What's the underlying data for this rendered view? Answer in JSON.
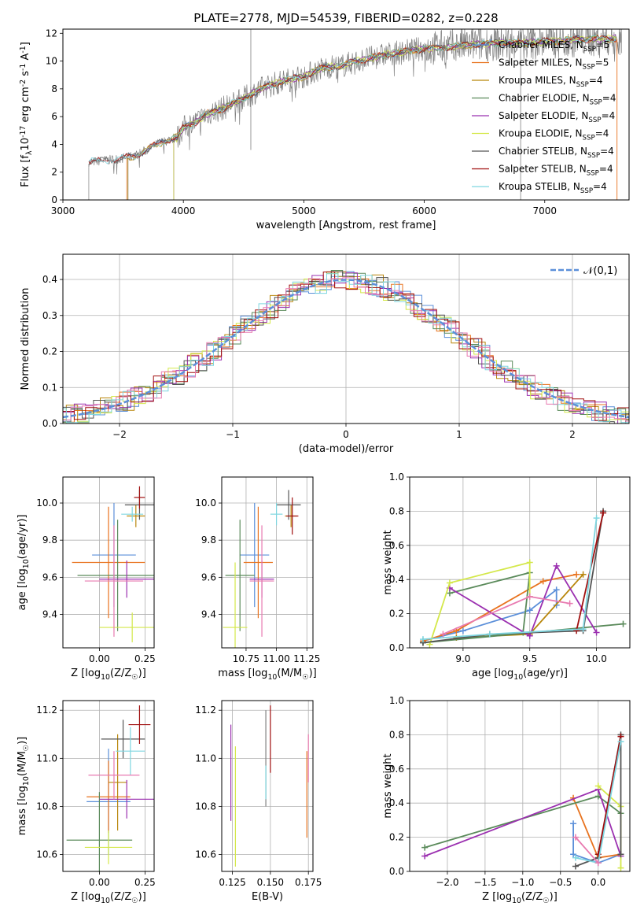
{
  "title": "PLATE=2778, MJD=54539, FIBERID=0282, z=0.228",
  "colors": {
    "chabrier_miles": "#5b8fd9",
    "salpeter_miles": "#e8731f",
    "kroupa_miles": "#b8860b",
    "chabrier_elodie": "#5a8a5a",
    "salpeter_elodie": "#9b30b0",
    "kroupa_elodie": "#d4e84a",
    "chabrier_stelib": "#555555",
    "salpeter_stelib": "#a00f0f",
    "kroupa_stelib": "#7fd6e0",
    "pink": "#e87ab0",
    "grey": "#808080",
    "gauss": "#5b8fd9"
  },
  "chart_data": [
    {
      "id": "spectrum",
      "type": "line",
      "xlabel": "wavelength [Angstrom, rest frame]",
      "ylabel": "Flux [f$_\\lambda$10$^{-17}$ erg cm$^{-2}$ s$^{-1}$ A$^{-1}$]",
      "xlim": [
        3000,
        7700
      ],
      "ylim": [
        0,
        12.3
      ],
      "xticks": [
        "3000",
        "4000",
        "5000",
        "6000",
        "7000"
      ],
      "yticks": [
        "0",
        "2",
        "4",
        "6",
        "8",
        "10",
        "12"
      ],
      "legend": [
        "Chabrier MILES, N$_{SSP}$=5",
        "Salpeter MILES, N$_{SSP}$=5",
        "Kroupa MILES, N$_{SSP}$=4",
        "Chabrier ELODIE, N$_{SSP}$=4",
        "Salpeter ELODIE, N$_{SSP}$=4",
        "Kroupa ELODIE, N$_{SSP}$=4",
        "Chabrier STELIB, N$_{SSP}$=4",
        "Salpeter STELIB, N$_{SSP}$=4",
        "Kroupa STELIB, N$_{SSP}$=4"
      ],
      "legend_placement": "top-right",
      "model_x": [
        3200,
        3300,
        3400,
        3500,
        3600,
        3700,
        3800,
        3900,
        3950,
        4000,
        4100,
        4200,
        4300,
        4400,
        4500,
        4600,
        4700,
        4800,
        4900,
        5000,
        5100,
        5200,
        5300,
        5400,
        5500,
        5600,
        5700,
        5800,
        5900,
        6000,
        6200,
        6400,
        6600,
        6800,
        7000,
        7200,
        7400,
        7600
      ],
      "model_y": [
        2.7,
        2.8,
        2.9,
        3.0,
        3.2,
        3.6,
        4.1,
        4.4,
        4.5,
        5.2,
        5.6,
        6.2,
        6.5,
        6.9,
        7.3,
        7.8,
        8.2,
        8.5,
        8.7,
        8.9,
        9.3,
        9.6,
        9.6,
        9.9,
        10.1,
        10.3,
        10.5,
        10.6,
        10.8,
        10.9,
        11.0,
        11.2,
        11.3,
        11.3,
        11.4,
        11.5,
        11.6,
        11.6
      ]
    },
    {
      "id": "residuals",
      "type": "histogram",
      "xlabel": "(data-model)/error",
      "ylabel": "Normed distribution",
      "xlim": [
        -2.5,
        2.5
      ],
      "ylim": [
        0,
        0.47
      ],
      "xticks": [
        "−2",
        "−1",
        "0",
        "1",
        "2"
      ],
      "yticks": [
        "0.0",
        "0.1",
        "0.2",
        "0.3",
        "0.4"
      ],
      "legend": [
        "$\\mathcal{N}(0,1)$"
      ],
      "legend_placement": "top-right",
      "grid": true
    },
    {
      "id": "age_vs_Z",
      "type": "errorbar",
      "xlabel": "Z [log$_{10}$(Z/Z$_\\odot$)]",
      "ylabel": "age  [log$_{10}$(age/yr)]",
      "xlim": [
        -0.2,
        0.3
      ],
      "ylim": [
        9.22,
        10.14
      ],
      "xticks": [
        "0.00",
        "0.25"
      ],
      "yticks": [
        "9.4",
        "9.6",
        "9.8",
        "10.0"
      ],
      "grid": true,
      "points": [
        {
          "c": "chabrier_miles",
          "x": 0.08,
          "y": 9.72,
          "xerr": 0.12,
          "yerr": 0.28
        },
        {
          "c": "salpeter_miles",
          "x": 0.05,
          "y": 9.68,
          "xerr": 0.2,
          "yerr": 0.3
        },
        {
          "c": "kroupa_miles",
          "x": 0.2,
          "y": 9.93,
          "xerr": 0.05,
          "yerr": 0.06
        },
        {
          "c": "chabrier_elodie",
          "x": 0.1,
          "y": 9.61,
          "xerr": 0.22,
          "yerr": 0.3
        },
        {
          "c": "salpeter_elodie",
          "x": 0.15,
          "y": 9.59,
          "xerr": 0.15,
          "yerr": 0.1
        },
        {
          "c": "kroupa_elodie",
          "x": 0.18,
          "y": 9.33,
          "xerr": 0.18,
          "yerr": 0.08
        },
        {
          "c": "chabrier_stelib",
          "x": 0.22,
          "y": 9.99,
          "xerr": 0.08,
          "yerr": 0.08
        },
        {
          "c": "salpeter_stelib",
          "x": 0.22,
          "y": 10.03,
          "xerr": 0.03,
          "yerr": 0.06
        },
        {
          "c": "kroupa_stelib",
          "x": 0.18,
          "y": 9.94,
          "xerr": 0.06,
          "yerr": 0.04
        },
        {
          "c": "pink",
          "x": 0.08,
          "y": 9.58,
          "xerr": 0.16,
          "yerr": 0.3
        }
      ]
    },
    {
      "id": "age_vs_mass",
      "type": "errorbar",
      "xlabel": "mass [log$_{10}$(M/M$_\\odot$)]",
      "ylabel": "",
      "xlim": [
        10.55,
        11.3
      ],
      "ylim": [
        9.22,
        10.14
      ],
      "xticks": [
        "10.75",
        "11.00",
        "11.25"
      ],
      "yticks": [
        "9.4",
        "9.6",
        "9.8",
        "10.0"
      ],
      "grid": true,
      "points": [
        {
          "c": "chabrier_miles",
          "x": 10.82,
          "y": 9.72,
          "xerr": 0.12,
          "yerr": 0.28
        },
        {
          "c": "salpeter_miles",
          "x": 10.85,
          "y": 9.68,
          "xerr": 0.12,
          "yerr": 0.3
        },
        {
          "c": "kroupa_miles",
          "x": 11.12,
          "y": 9.93,
          "xerr": 0.05,
          "yerr": 0.06
        },
        {
          "c": "chabrier_elodie",
          "x": 10.7,
          "y": 9.61,
          "xerr": 0.12,
          "yerr": 0.3
        },
        {
          "c": "salpeter_elodie",
          "x": 10.88,
          "y": 9.59,
          "xerr": 0.1,
          "yerr": 0.1
        },
        {
          "c": "kroupa_elodie",
          "x": 10.66,
          "y": 9.33,
          "xerr": 0.1,
          "yerr": 0.35
        },
        {
          "c": "chabrier_stelib",
          "x": 11.1,
          "y": 9.99,
          "xerr": 0.1,
          "yerr": 0.08
        },
        {
          "c": "salpeter_stelib",
          "x": 11.13,
          "y": 9.93,
          "xerr": 0.05,
          "yerr": 0.1
        },
        {
          "c": "kroupa_stelib",
          "x": 11.0,
          "y": 9.94,
          "xerr": 0.05,
          "yerr": 0.06
        },
        {
          "c": "pink",
          "x": 10.88,
          "y": 9.58,
          "xerr": 0.1,
          "yerr": 0.3
        }
      ]
    },
    {
      "id": "weight_vs_age",
      "type": "line",
      "xlabel": "age  [log$_{10}$(age/yr)]",
      "ylabel": "mass weight",
      "xlim": [
        8.6,
        10.25
      ],
      "ylim": [
        0,
        1.0
      ],
      "xticks": [
        "9.0",
        "9.5",
        "10.0"
      ],
      "yticks": [
        "0.0",
        "0.2",
        "0.4",
        "0.6",
        "0.8",
        "1.0"
      ],
      "grid": true,
      "series": [
        {
          "c": "chabrier_miles",
          "x": [
            8.7,
            9.0,
            9.5,
            9.7,
            9.7
          ],
          "y": [
            0.04,
            0.1,
            0.22,
            0.34,
            0.25
          ]
        },
        {
          "c": "salpeter_miles",
          "x": [
            8.7,
            8.95,
            9.6,
            9.85
          ],
          "y": [
            0.04,
            0.1,
            0.39,
            0.43
          ]
        },
        {
          "c": "kroupa_miles",
          "x": [
            8.95,
            9.5,
            9.9
          ],
          "y": [
            0.06,
            0.08,
            0.43
          ]
        },
        {
          "c": "chabrier_elodie",
          "x": [
            8.9,
            9.5,
            9.45,
            8.7,
            10.2
          ],
          "y": [
            0.32,
            0.44,
            0.09,
            0.03,
            0.14
          ]
        },
        {
          "c": "salpeter_elodie",
          "x": [
            8.9,
            9.5,
            9.7,
            10.0
          ],
          "y": [
            0.35,
            0.07,
            0.48,
            0.09
          ]
        },
        {
          "c": "kroupa_elodie",
          "x": [
            8.75,
            8.9,
            9.5,
            9.5
          ],
          "y": [
            0.02,
            0.38,
            0.5,
            0.3
          ]
        },
        {
          "c": "chabrier_stelib",
          "x": [
            8.7,
            9.2,
            9.9,
            10.05
          ],
          "y": [
            0.03,
            0.08,
            0.1,
            0.8
          ]
        },
        {
          "c": "salpeter_stelib",
          "x": [
            9.85,
            10.05
          ],
          "y": [
            0.1,
            0.79
          ]
        },
        {
          "c": "kroupa_stelib",
          "x": [
            8.7,
            9.2,
            9.9,
            10.0
          ],
          "y": [
            0.05,
            0.08,
            0.11,
            0.76
          ]
        },
        {
          "c": "pink",
          "x": [
            8.85,
            9.5,
            9.8
          ],
          "y": [
            0.08,
            0.3,
            0.26
          ]
        }
      ]
    },
    {
      "id": "mass_vs_Z",
      "type": "errorbar",
      "xlabel": "Z [log$_{10}$(Z/Z$_\\odot$)]",
      "ylabel": "mass [log$_{10}$(M/M$_\\odot$)]",
      "xlim": [
        -0.2,
        0.3
      ],
      "ylim": [
        10.53,
        11.24
      ],
      "xticks": [
        "0.00",
        "0.25"
      ],
      "yticks": [
        "10.6",
        "10.8",
        "11.0",
        "11.2"
      ],
      "grid": true,
      "points": [
        {
          "c": "chabrier_miles",
          "x": 0.05,
          "y": 10.82,
          "xerr": 0.12,
          "yerr": 0.22
        },
        {
          "c": "salpeter_miles",
          "x": 0.05,
          "y": 10.84,
          "xerr": 0.12,
          "yerr": 0.15
        },
        {
          "c": "kroupa_miles",
          "x": 0.1,
          "y": 10.9,
          "xerr": 0.05,
          "yerr": 0.2
        },
        {
          "c": "chabrier_elodie",
          "x": 0.0,
          "y": 10.66,
          "xerr": 0.18,
          "yerr": 0.2
        },
        {
          "c": "salpeter_elodie",
          "x": 0.15,
          "y": 10.83,
          "xerr": 0.15,
          "yerr": 0.08
        },
        {
          "c": "kroupa_elodie",
          "x": 0.05,
          "y": 10.63,
          "xerr": 0.13,
          "yerr": 0.07
        },
        {
          "c": "chabrier_stelib",
          "x": 0.13,
          "y": 11.08,
          "xerr": 0.12,
          "yerr": 0.08
        },
        {
          "c": "salpeter_stelib",
          "x": 0.22,
          "y": 11.14,
          "xerr": 0.06,
          "yerr": 0.08
        },
        {
          "c": "kroupa_stelib",
          "x": 0.17,
          "y": 11.03,
          "xerr": 0.08,
          "yerr": 0.1
        },
        {
          "c": "pink",
          "x": 0.08,
          "y": 10.93,
          "xerr": 0.14,
          "yerr": 0.1
        }
      ]
    },
    {
      "id": "mass_vs_ebv",
      "type": "errorbar",
      "xlabel": "E(B-V)",
      "ylabel": "",
      "xlim": [
        0.118,
        0.178
      ],
      "ylim": [
        10.53,
        11.24
      ],
      "xticks": [
        "0.125",
        "0.150",
        "0.175"
      ],
      "yticks": [
        "10.6",
        "10.8",
        "11.0",
        "11.2"
      ],
      "grid": true,
      "points": [
        {
          "c": "salpeter_elodie",
          "x": 0.124,
          "y": 10.94,
          "xerr": 0,
          "yerr": 0.2
        },
        {
          "c": "kroupa_elodie",
          "x": 0.127,
          "y": 10.8,
          "xerr": 0,
          "yerr": 0.25
        },
        {
          "c": "grey",
          "x": 0.147,
          "y": 11.0,
          "xerr": 0,
          "yerr": 0.2
        },
        {
          "c": "kroupa_stelib",
          "x": 0.147,
          "y": 10.9,
          "xerr": 0,
          "yerr": 0.07
        },
        {
          "c": "salpeter_stelib",
          "x": 0.15,
          "y": 11.08,
          "xerr": 0,
          "yerr": 0.14
        },
        {
          "c": "salpeter_miles",
          "x": 0.174,
          "y": 10.85,
          "xerr": 0,
          "yerr": 0.18
        },
        {
          "c": "pink",
          "x": 0.175,
          "y": 11.0,
          "xerr": 0,
          "yerr": 0.1
        }
      ]
    },
    {
      "id": "weight_vs_Z",
      "type": "line",
      "xlabel": "Z [log$_{10}$(Z/Z$_\\odot$)]",
      "ylabel": "mass weight",
      "xlim": [
        -2.5,
        0.42
      ],
      "ylim": [
        0,
        1.0
      ],
      "xticks": [
        "−2.0",
        "−1.5",
        "−1.0",
        "−0.5",
        "0.0"
      ],
      "yticks": [
        "0.0",
        "0.2",
        "0.4",
        "0.6",
        "0.8",
        "1.0"
      ],
      "grid": true,
      "series": [
        {
          "c": "chabrier_miles",
          "x": [
            -0.33,
            -0.33,
            0.0,
            0.3
          ],
          "y": [
            0.28,
            0.1,
            0.05,
            0.1
          ]
        },
        {
          "c": "salpeter_miles",
          "x": [
            -0.33,
            0.0,
            0.3
          ],
          "y": [
            0.43,
            0.08,
            0.1
          ]
        },
        {
          "c": "chabrier_elodie",
          "x": [
            -2.3,
            0.0,
            0.3
          ],
          "y": [
            0.14,
            0.44,
            0.34
          ]
        },
        {
          "c": "salpeter_elodie",
          "x": [
            -2.3,
            0.0,
            0.3
          ],
          "y": [
            0.09,
            0.48,
            0.09
          ]
        },
        {
          "c": "kroupa_elodie",
          "x": [
            0.0,
            0.3,
            0.3
          ],
          "y": [
            0.5,
            0.38,
            0.02
          ]
        },
        {
          "c": "chabrier_stelib",
          "x": [
            -0.3,
            0.0,
            0.3,
            0.3
          ],
          "y": [
            0.03,
            0.08,
            0.8,
            0.1
          ]
        },
        {
          "c": "salpeter_stelib",
          "x": [
            0.0,
            0.3
          ],
          "y": [
            0.1,
            0.79
          ]
        },
        {
          "c": "kroupa_stelib",
          "x": [
            -0.3,
            0.0,
            0.3
          ],
          "y": [
            0.08,
            0.05,
            0.76
          ]
        },
        {
          "c": "pink",
          "x": [
            -0.3,
            0.0
          ],
          "y": [
            0.2,
            0.05
          ]
        }
      ]
    }
  ]
}
